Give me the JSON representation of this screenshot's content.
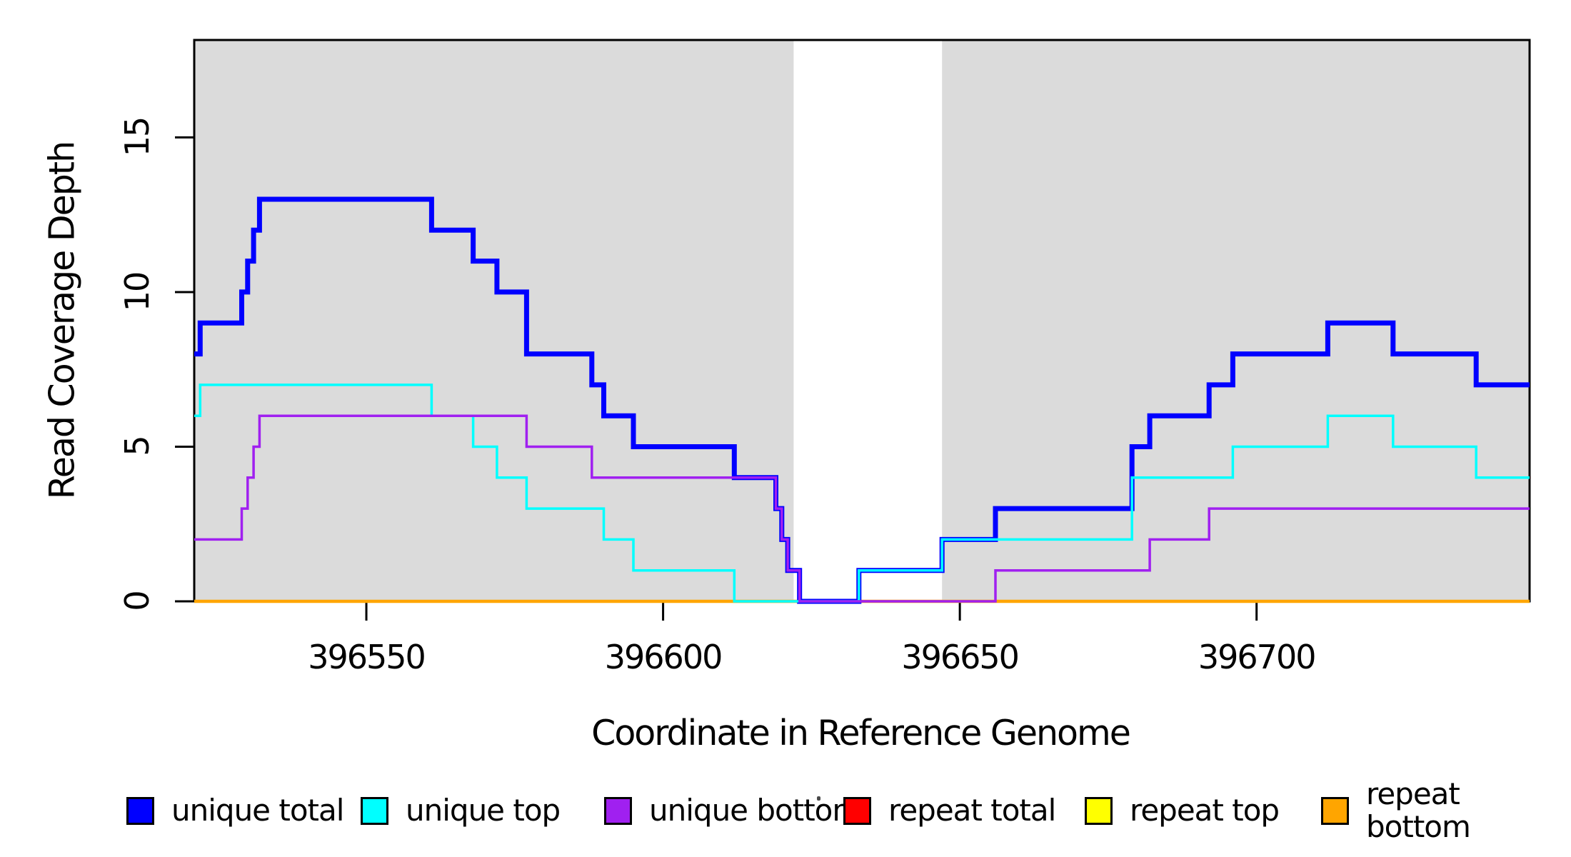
{
  "chart_data": {
    "type": "line",
    "subtype": "step",
    "title": "",
    "xlabel": "Coordinate in Reference Genome",
    "ylabel": "Read Coverage Depth",
    "xlim": [
      396521,
      396746
    ],
    "ylim": [
      0,
      18.15
    ],
    "x_ticks": [
      396550,
      396600,
      396650,
      396700
    ],
    "y_ticks": [
      0,
      5,
      10,
      15
    ],
    "grid": false,
    "plot_background": "#ffffff",
    "shaded_color": "#dbdbdb",
    "shaded_regions": [
      {
        "x0": 396521,
        "x1": 396622
      },
      {
        "x0": 396647,
        "x1": 396746
      }
    ],
    "gap_region": {
      "x0": 396622,
      "x1": 396647
    },
    "frame_color": "#000000",
    "legend_position": "bottom",
    "series": [
      {
        "name": "repeat total",
        "color": "#FF0000",
        "width": 3.5,
        "steps": [
          [
            396521,
            0
          ]
        ]
      },
      {
        "name": "repeat top",
        "color": "#FFFF00",
        "width": 3.5,
        "steps": [
          [
            396521,
            0
          ]
        ]
      },
      {
        "name": "repeat bottom",
        "color": "#FFA500",
        "width": 4.5,
        "steps": [
          [
            396521,
            0
          ]
        ]
      },
      {
        "name": "unique total",
        "color": "#0000FF",
        "width": 7,
        "steps": [
          [
            396521,
            8
          ],
          [
            396522,
            9
          ],
          [
            396529,
            10
          ],
          [
            396530,
            11
          ],
          [
            396531,
            12
          ],
          [
            396532,
            13
          ],
          [
            396561,
            12
          ],
          [
            396568,
            11
          ],
          [
            396572,
            10
          ],
          [
            396577,
            8
          ],
          [
            396588,
            7
          ],
          [
            396590,
            6
          ],
          [
            396595,
            5
          ],
          [
            396612,
            4
          ],
          [
            396619,
            3
          ],
          [
            396620,
            2
          ],
          [
            396621,
            1
          ],
          [
            396623,
            0
          ],
          [
            396633,
            1
          ],
          [
            396647,
            2
          ],
          [
            396656,
            3
          ],
          [
            396679,
            5
          ],
          [
            396682,
            6
          ],
          [
            396692,
            7
          ],
          [
            396696,
            8
          ],
          [
            396712,
            9
          ],
          [
            396723,
            8
          ],
          [
            396737,
            7
          ]
        ]
      },
      {
        "name": "unique top",
        "color": "#00FFFF",
        "width": 3.5,
        "steps": [
          [
            396521,
            6
          ],
          [
            396522,
            7
          ],
          [
            396561,
            6
          ],
          [
            396568,
            5
          ],
          [
            396572,
            4
          ],
          [
            396577,
            3
          ],
          [
            396590,
            2
          ],
          [
            396595,
            1
          ],
          [
            396612,
            0
          ],
          [
            396633,
            1
          ],
          [
            396647,
            2
          ],
          [
            396679,
            4
          ],
          [
            396696,
            5
          ],
          [
            396712,
            6
          ],
          [
            396723,
            5
          ],
          [
            396737,
            4
          ]
        ]
      },
      {
        "name": "unique bottom",
        "color": "#A020F0",
        "width": 3.5,
        "steps": [
          [
            396521,
            2
          ],
          [
            396529,
            3
          ],
          [
            396530,
            4
          ],
          [
            396531,
            5
          ],
          [
            396532,
            6
          ],
          [
            396577,
            5
          ],
          [
            396588,
            4
          ],
          [
            396619,
            3
          ],
          [
            396620,
            2
          ],
          [
            396621,
            1
          ],
          [
            396623,
            0
          ],
          [
            396656,
            1
          ],
          [
            396682,
            2
          ],
          [
            396692,
            3
          ]
        ]
      }
    ]
  },
  "legend": {
    "entries": [
      {
        "label": "unique total",
        "color": "#0000FF"
      },
      {
        "label": "unique top",
        "color": "#00FFFF"
      },
      {
        "label": "unique bottom",
        "color": "#A020F0"
      },
      {
        "label": "repeat total",
        "color": "#FF0000"
      },
      {
        "label": "repeat top",
        "color": "#FFFF00"
      },
      {
        "label": "repeat bottom",
        "color": "#FFA500"
      }
    ],
    "stray_mark": "."
  }
}
